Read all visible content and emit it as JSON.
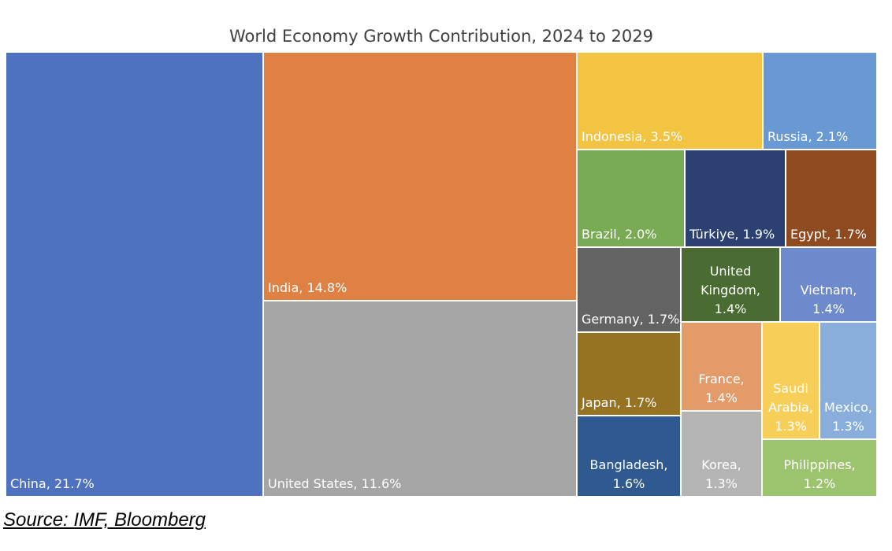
{
  "chart_data": {
    "type": "treemap",
    "title": "World Economy Growth Contribution, 2024 to 2029",
    "unit": "%",
    "items": [
      {
        "name": "China",
        "label": [
          "China, 21.7%"
        ],
        "value": 21.7,
        "color": "#4E71C0"
      },
      {
        "name": "India",
        "label": [
          "India, 14.8%"
        ],
        "value": 14.8,
        "color": "#DE8143"
      },
      {
        "name": "United States",
        "label": [
          "United States, 11.6%"
        ],
        "value": 11.6,
        "color": "#A5A5A5"
      },
      {
        "name": "Indonesia",
        "label": [
          "Indonesia, 3.5%"
        ],
        "value": 3.5,
        "color": "#F3C342"
      },
      {
        "name": "Russia",
        "label": [
          "Russia, 2.1%"
        ],
        "value": 2.1,
        "color": "#6899D3"
      },
      {
        "name": "Brazil",
        "label": [
          "Brazil, 2.0%"
        ],
        "value": 2.0,
        "color": "#78AB53"
      },
      {
        "name": "Türkiye",
        "label": [
          "Türkiye, 1.9%"
        ],
        "value": 1.9,
        "color": "#2C4171"
      },
      {
        "name": "Egypt",
        "label": [
          "Egypt, 1.7%"
        ],
        "value": 1.7,
        "color": "#8F4A1F"
      },
      {
        "name": "Germany",
        "label": [
          "Germany, 1.7%"
        ],
        "value": 1.7,
        "color": "#636363"
      },
      {
        "name": "United Kingdom",
        "label": [
          "United",
          "Kingdom,",
          "1.4%"
        ],
        "value": 1.4,
        "color": "#4A6B31"
      },
      {
        "name": "Vietnam",
        "label": [
          "Vietnam,",
          "1.4%"
        ],
        "value": 1.4,
        "color": "#6D8BCC"
      },
      {
        "name": "Japan",
        "label": [
          "Japan, 1.7%"
        ],
        "value": 1.7,
        "color": "#967322"
      },
      {
        "name": "France",
        "label": [
          "France,",
          "1.4%"
        ],
        "value": 1.4,
        "color": "#E39B6A"
      },
      {
        "name": "Saudi Arabia",
        "label": [
          "Saudi",
          "Arabia,",
          "1.3%"
        ],
        "value": 1.3,
        "color": "#F7CF58"
      },
      {
        "name": "Mexico",
        "label": [
          "Mexico,",
          "1.3%"
        ],
        "value": 1.3,
        "color": "#8AAEDC"
      },
      {
        "name": "Bangladesh",
        "label": [
          "Bangladesh,",
          "1.6%"
        ],
        "value": 1.6,
        "color": "#2F5A8F"
      },
      {
        "name": "Korea",
        "label": [
          "Korea,",
          "1.3%"
        ],
        "value": 1.3,
        "color": "#B4B4B4"
      },
      {
        "name": "Philippines",
        "label": [
          "Philippines,",
          "1.2%"
        ],
        "value": 1.2,
        "color": "#9CC46E"
      }
    ]
  },
  "source": "Source: IMF, Bloomberg"
}
